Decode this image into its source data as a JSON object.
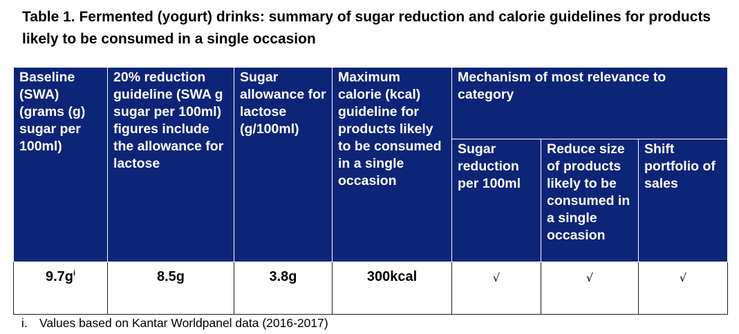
{
  "title": "Table 1. Fermented (yogurt) drinks: summary of sugar reduction and calorie guidelines for products likely to be consumed in a single occasion",
  "headers": {
    "baseline": "Baseline (SWA) (grams (g) sugar per 100ml)",
    "reduction": "20% reduction guideline (SWA g sugar per 100ml) figures include the allowance for lactose",
    "lactose": "Sugar allowance for lactose (g/100ml)",
    "calorie": "Maximum calorie (kcal) guideline for products likely to be consumed in a single occasion",
    "mechanism": "Mechanism of most relevance to category",
    "sub": {
      "sugar_reduction": "Sugar reduction per 100ml",
      "reduce_size": "Reduce size of products likely to be consumed in a single occasion",
      "shift_portfolio": "Shift portfolio of sales"
    }
  },
  "row": {
    "baseline": "9.7g",
    "baseline_note": "i",
    "reduction": "8.5g",
    "lactose": "3.8g",
    "calorie": "300kcal",
    "sugar_reduction": "√",
    "reduce_size": "√",
    "shift_portfolio": "√"
  },
  "footnote": {
    "marker": "i.",
    "text": "Values based on Kantar Worldpanel data (2016-2017)"
  }
}
